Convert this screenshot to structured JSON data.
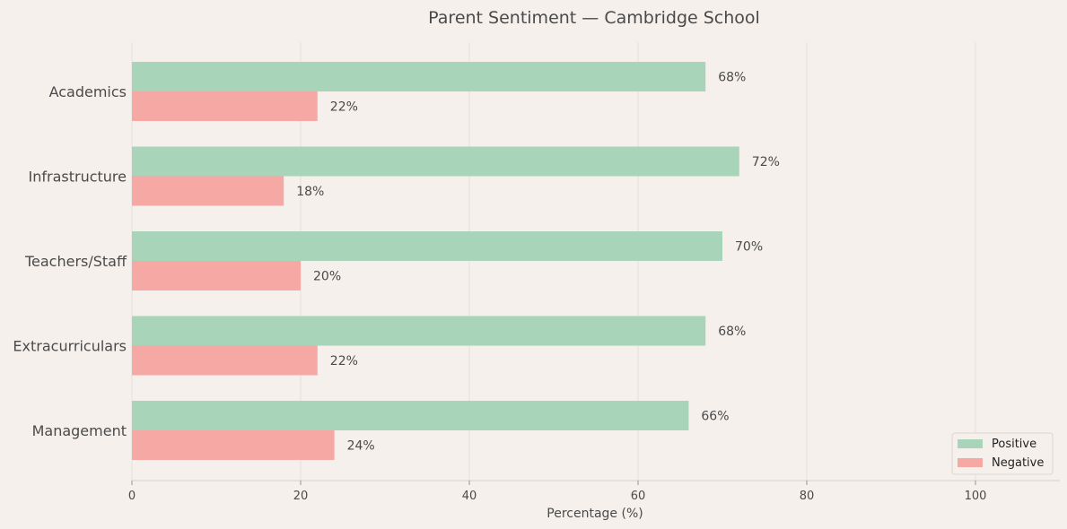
{
  "chart_data": {
    "type": "bar",
    "orientation": "horizontal",
    "title": "Parent Sentiment — Cambridge School",
    "xlabel": "Percentage (%)",
    "ylabel": "",
    "categories": [
      "Academics",
      "Infrastructure",
      "Teachers/Staff",
      "Extracurriculars",
      "Management"
    ],
    "series": [
      {
        "name": "Positive",
        "color": "#a8d5b9",
        "values": [
          68,
          72,
          70,
          68,
          66
        ]
      },
      {
        "name": "Negative",
        "color": "#f6a8a4",
        "values": [
          22,
          18,
          20,
          22,
          24
        ]
      }
    ],
    "data_labels": {
      "Positive": [
        "68%",
        "72%",
        "70%",
        "68%",
        "66%"
      ],
      "Negative": [
        "22%",
        "18%",
        "20%",
        "22%",
        "24%"
      ]
    },
    "xlim": [
      0,
      110
    ],
    "xticks": [
      0,
      20,
      40,
      60,
      80,
      100
    ],
    "xtick_labels": [
      "0",
      "20",
      "40",
      "60",
      "80",
      "100"
    ],
    "grid": "vertical",
    "legend_position": "bottom-right"
  }
}
